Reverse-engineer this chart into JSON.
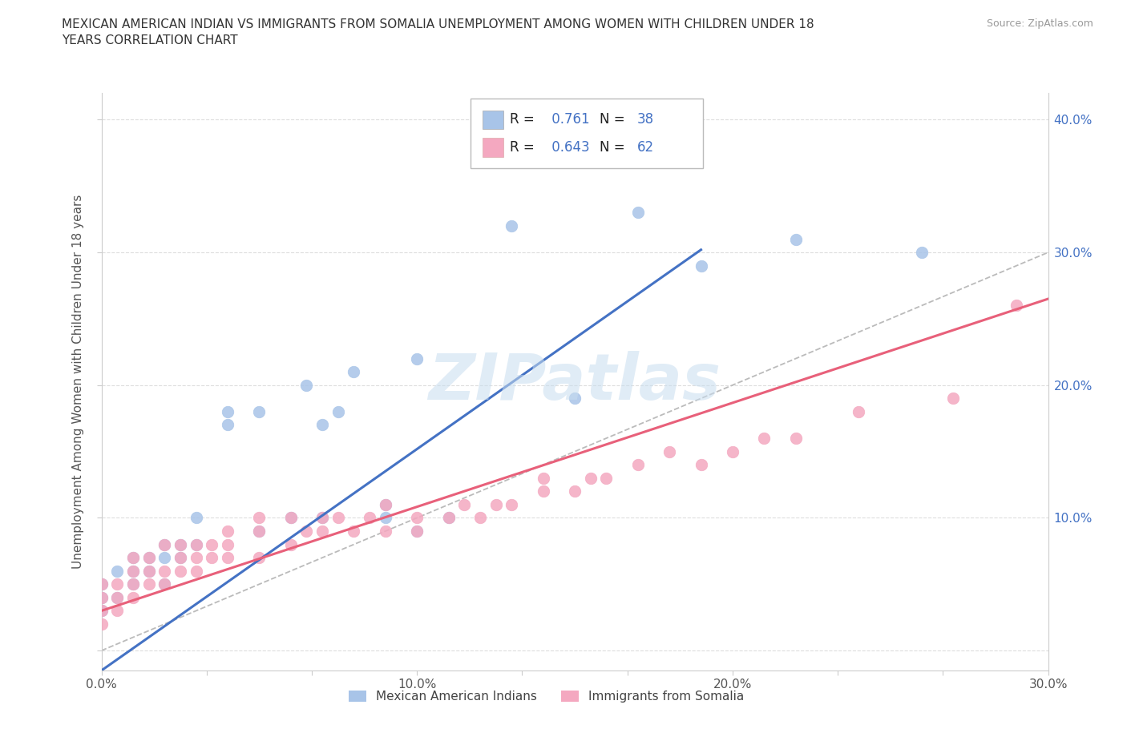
{
  "title": "MEXICAN AMERICAN INDIAN VS IMMIGRANTS FROM SOMALIA UNEMPLOYMENT AMONG WOMEN WITH CHILDREN UNDER 18\nYEARS CORRELATION CHART",
  "source": "Source: ZipAtlas.com",
  "ylabel": "Unemployment Among Women with Children Under 18 years",
  "xlim": [
    0.0,
    0.3
  ],
  "ylim": [
    -0.015,
    0.42
  ],
  "blue_R": 0.761,
  "blue_N": 38,
  "pink_R": 0.643,
  "pink_N": 62,
  "blue_color": "#A8C4E8",
  "pink_color": "#F4A8C0",
  "blue_line_color": "#4472C4",
  "pink_line_color": "#E8607A",
  "dashed_line_color": "#BBBBBB",
  "watermark_text": "ZIPatlas",
  "blue_scatter_x": [
    0.0,
    0.0,
    0.0,
    0.005,
    0.005,
    0.01,
    0.01,
    0.01,
    0.015,
    0.015,
    0.02,
    0.02,
    0.02,
    0.025,
    0.025,
    0.03,
    0.03,
    0.04,
    0.04,
    0.05,
    0.05,
    0.06,
    0.065,
    0.07,
    0.07,
    0.075,
    0.08,
    0.09,
    0.09,
    0.1,
    0.1,
    0.11,
    0.13,
    0.15,
    0.17,
    0.19,
    0.22,
    0.26
  ],
  "blue_scatter_y": [
    0.03,
    0.04,
    0.05,
    0.04,
    0.06,
    0.05,
    0.06,
    0.07,
    0.06,
    0.07,
    0.05,
    0.07,
    0.08,
    0.07,
    0.08,
    0.08,
    0.1,
    0.17,
    0.18,
    0.09,
    0.18,
    0.1,
    0.2,
    0.1,
    0.17,
    0.18,
    0.21,
    0.1,
    0.11,
    0.09,
    0.22,
    0.1,
    0.32,
    0.19,
    0.33,
    0.29,
    0.31,
    0.3
  ],
  "pink_scatter_x": [
    0.0,
    0.0,
    0.0,
    0.0,
    0.005,
    0.005,
    0.005,
    0.01,
    0.01,
    0.01,
    0.01,
    0.015,
    0.015,
    0.015,
    0.02,
    0.02,
    0.02,
    0.025,
    0.025,
    0.025,
    0.03,
    0.03,
    0.03,
    0.035,
    0.035,
    0.04,
    0.04,
    0.04,
    0.05,
    0.05,
    0.05,
    0.06,
    0.06,
    0.065,
    0.07,
    0.07,
    0.075,
    0.08,
    0.085,
    0.09,
    0.09,
    0.1,
    0.1,
    0.11,
    0.115,
    0.12,
    0.125,
    0.13,
    0.14,
    0.14,
    0.15,
    0.155,
    0.16,
    0.17,
    0.18,
    0.19,
    0.2,
    0.21,
    0.22,
    0.24,
    0.27,
    0.29
  ],
  "pink_scatter_y": [
    0.02,
    0.03,
    0.04,
    0.05,
    0.03,
    0.04,
    0.05,
    0.04,
    0.05,
    0.06,
    0.07,
    0.05,
    0.06,
    0.07,
    0.05,
    0.06,
    0.08,
    0.06,
    0.07,
    0.08,
    0.06,
    0.07,
    0.08,
    0.07,
    0.08,
    0.07,
    0.08,
    0.09,
    0.07,
    0.09,
    0.1,
    0.08,
    0.1,
    0.09,
    0.09,
    0.1,
    0.1,
    0.09,
    0.1,
    0.09,
    0.11,
    0.09,
    0.1,
    0.1,
    0.11,
    0.1,
    0.11,
    0.11,
    0.12,
    0.13,
    0.12,
    0.13,
    0.13,
    0.14,
    0.15,
    0.14,
    0.15,
    0.16,
    0.16,
    0.18,
    0.19,
    0.26
  ],
  "blue_line_x0": 0.0,
  "blue_line_y0": -0.015,
  "blue_line_x1": 0.19,
  "blue_line_y1": 0.302,
  "pink_line_x0": 0.0,
  "pink_line_y0": 0.03,
  "pink_line_x1": 0.3,
  "pink_line_y1": 0.265,
  "ytick_labels": [
    "",
    "10.0%",
    "20.0%",
    "30.0%",
    "40.0%"
  ],
  "ytick_values": [
    0.0,
    0.1,
    0.2,
    0.3,
    0.4
  ],
  "xtick_labels": [
    "0.0%",
    "",
    "",
    "10.0%",
    "",
    "",
    "20.0%",
    "",
    "",
    "30.0%"
  ],
  "xtick_values": [
    0.0,
    0.0333,
    0.0667,
    0.1,
    0.1333,
    0.1667,
    0.2,
    0.2333,
    0.2667,
    0.3
  ],
  "legend_label_blue": "Mexican American Indians",
  "legend_label_pink": "Immigrants from Somalia"
}
